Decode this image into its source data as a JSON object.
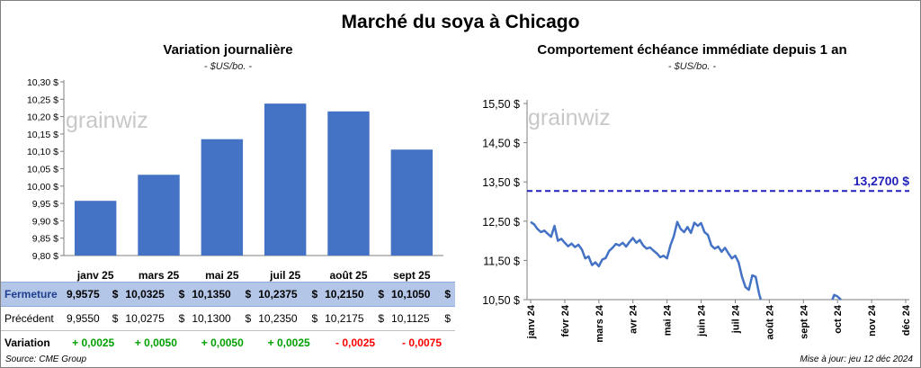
{
  "title": "Marché du soya à Chicago",
  "left": {
    "title": "Variation journalière",
    "subtitle": "- $US/bo. -"
  },
  "right": {
    "title": "Comportement échéance immédiate depuis 1 an",
    "subtitle": "- $US/bo. -",
    "ref_label": "13,2700 $"
  },
  "watermark": "grainwiz",
  "table": {
    "rows": [
      {
        "label": "Fermeture",
        "values": [
          "9,9575",
          "10,0325",
          "10,1350",
          "10,2375",
          "10,2150",
          "10,1050"
        ],
        "unit": "$"
      },
      {
        "label": "Précédent",
        "values": [
          "9,9550",
          "10,0275",
          "10,1300",
          "10,2350",
          "10,2175",
          "10,1125"
        ],
        "unit": "$"
      },
      {
        "label": "Variation",
        "values": [
          "+ 0,0025",
          "+ 0,0050",
          "+ 0,0050",
          "+ 0,0025",
          "- 0,0025",
          "- 0,0075"
        ]
      }
    ]
  },
  "source": "Source: CME Group",
  "update": "Mise à jour: jeu 12 déc 2024",
  "colors": {
    "bar": "#4472c4",
    "line": "#4472c4",
    "ref": "#2222bb",
    "positive": "#00a000",
    "negative": "#ff0000"
  },
  "chart_data": [
    {
      "type": "bar",
      "categories": [
        "janv 25",
        "mars 25",
        "mai 25",
        "juil 25",
        "août 25",
        "sept 25"
      ],
      "values": [
        9.9575,
        10.0325,
        10.135,
        10.2375,
        10.215,
        10.105
      ],
      "ylim": [
        9.8,
        10.3
      ],
      "yticks": [
        "9,80 $",
        "9,85 $",
        "9,90 $",
        "9,95 $",
        "10,00 $",
        "10,05 $",
        "10,10 $",
        "10,15 $",
        "10,20 $",
        "10,25 $",
        "10,30 $"
      ],
      "grid": false
    },
    {
      "type": "line",
      "xticks": [
        "janv 24",
        "févr 24",
        "mars 24",
        "avr 24",
        "mai 24",
        "juin 24",
        "juil 24",
        "août 24",
        "sept 24",
        "oct 24",
        "nov 24",
        "déc 24"
      ],
      "ylim": [
        10.5,
        15.5
      ],
      "yticks": [
        "10,50 $",
        "11,50 $",
        "12,50 $",
        "13,50 $",
        "14,50 $",
        "15,50 $"
      ],
      "reference_line": 13.27,
      "series": [
        {
          "values": [
            [
              0,
              12.48
            ],
            [
              0.1,
              12.42
            ],
            [
              0.2,
              12.3
            ],
            [
              0.3,
              12.22
            ],
            [
              0.4,
              12.26
            ],
            [
              0.5,
              12.18
            ],
            [
              0.6,
              12.1
            ],
            [
              0.7,
              12.38
            ],
            [
              0.8,
              12.0
            ],
            [
              0.9,
              12.05
            ],
            [
              1.0,
              11.95
            ],
            [
              1.1,
              11.86
            ],
            [
              1.2,
              11.93
            ],
            [
              1.3,
              11.84
            ],
            [
              1.4,
              11.9
            ],
            [
              1.5,
              11.78
            ],
            [
              1.6,
              11.55
            ],
            [
              1.7,
              11.6
            ],
            [
              1.8,
              11.38
            ],
            [
              1.9,
              11.45
            ],
            [
              2.0,
              11.35
            ],
            [
              2.1,
              11.52
            ],
            [
              2.2,
              11.56
            ],
            [
              2.3,
              11.74
            ],
            [
              2.4,
              11.82
            ],
            [
              2.5,
              11.92
            ],
            [
              2.6,
              11.88
            ],
            [
              2.7,
              11.95
            ],
            [
              2.8,
              11.85
            ],
            [
              2.9,
              11.97
            ],
            [
              3.0,
              12.07
            ],
            [
              3.1,
              11.95
            ],
            [
              3.2,
              12.02
            ],
            [
              3.3,
              11.88
            ],
            [
              3.4,
              11.8
            ],
            [
              3.5,
              11.83
            ],
            [
              3.6,
              11.75
            ],
            [
              3.7,
              11.68
            ],
            [
              3.8,
              11.58
            ],
            [
              3.9,
              11.62
            ],
            [
              4.0,
              11.55
            ],
            [
              4.1,
              11.88
            ],
            [
              4.2,
              12.12
            ],
            [
              4.3,
              12.48
            ],
            [
              4.4,
              12.3
            ],
            [
              4.5,
              12.22
            ],
            [
              4.6,
              12.35
            ],
            [
              4.7,
              12.2
            ],
            [
              4.8,
              12.46
            ],
            [
              4.9,
              12.38
            ],
            [
              5.0,
              12.45
            ],
            [
              5.1,
              12.22
            ],
            [
              5.2,
              12.15
            ],
            [
              5.3,
              11.88
            ],
            [
              5.4,
              11.8
            ],
            [
              5.5,
              11.85
            ],
            [
              5.6,
              11.72
            ],
            [
              5.7,
              11.82
            ],
            [
              5.8,
              11.68
            ],
            [
              5.9,
              11.55
            ],
            [
              6.0,
              11.62
            ],
            [
              6.1,
              11.45
            ],
            [
              6.2,
              11.08
            ],
            [
              6.3,
              10.82
            ],
            [
              6.4,
              10.75
            ],
            [
              6.5,
              11.12
            ],
            [
              6.6,
              11.08
            ],
            [
              6.7,
              10.65
            ],
            [
              6.75,
              10.5
            ]
          ]
        },
        {
          "values": [
            [
              8.85,
              10.5
            ],
            [
              8.9,
              10.62
            ],
            [
              9.0,
              10.58
            ],
            [
              9.1,
              10.5
            ]
          ]
        }
      ]
    }
  ]
}
